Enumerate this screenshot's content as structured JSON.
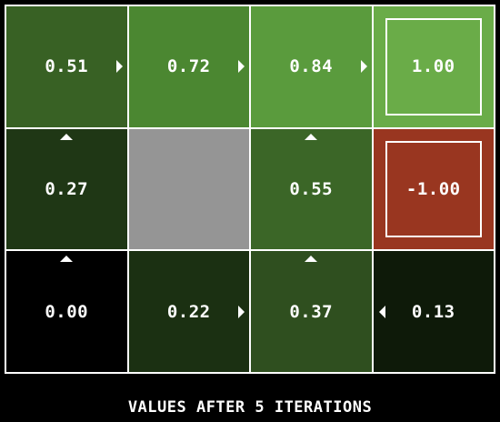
{
  "caption": "VALUES AFTER 5 ITERATIONS",
  "grid": {
    "rows": 3,
    "cols": 4,
    "border_color": "#ffffff",
    "cells": [
      {
        "row": 0,
        "col": 0,
        "value": "0.51",
        "policy": "right",
        "color": "#386124",
        "terminal": false
      },
      {
        "row": 0,
        "col": 1,
        "value": "0.72",
        "policy": "right",
        "color": "#4b8731",
        "terminal": false
      },
      {
        "row": 0,
        "col": 2,
        "value": "0.84",
        "policy": "right",
        "color": "#5a9b3d",
        "terminal": false
      },
      {
        "row": 0,
        "col": 3,
        "value": "1.00",
        "policy": "",
        "color": "#6aac48",
        "terminal": true
      },
      {
        "row": 1,
        "col": 0,
        "value": "0.27",
        "policy": "up",
        "color": "#1f3715",
        "terminal": false
      },
      {
        "row": 1,
        "col": 1,
        "value": "",
        "policy": "",
        "color": "#959595",
        "terminal": false,
        "wall": true
      },
      {
        "row": 1,
        "col": 2,
        "value": "0.55",
        "policy": "up",
        "color": "#3b6627",
        "terminal": false
      },
      {
        "row": 1,
        "col": 3,
        "value": "-1.00",
        "policy": "",
        "color": "#993620",
        "terminal": true
      },
      {
        "row": 2,
        "col": 0,
        "value": "0.00",
        "policy": "up",
        "color": "#000000",
        "terminal": false
      },
      {
        "row": 2,
        "col": 1,
        "value": "0.22",
        "policy": "right",
        "color": "#1b3012",
        "terminal": false
      },
      {
        "row": 2,
        "col": 2,
        "value": "0.37",
        "policy": "up",
        "color": "#2f4f1f",
        "terminal": false
      },
      {
        "row": 2,
        "col": 3,
        "value": "0.13",
        "policy": "left",
        "color": "#0e1a09",
        "terminal": false
      }
    ]
  }
}
